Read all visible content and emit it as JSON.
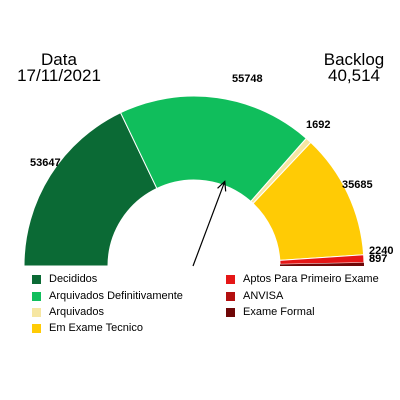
{
  "header": {
    "left_title": "Data",
    "left_value": "17/11/2021",
    "right_title": "Backlog",
    "right_value": "40,514"
  },
  "chart_data": {
    "type": "pie",
    "variant": "half-donut gauge",
    "series": [
      {
        "name": "Decididos",
        "value": 53647,
        "label": "53647",
        "color": "#0b6a35"
      },
      {
        "name": "Arquivados Definitivamente",
        "value": 55748,
        "label": "55748",
        "color": "#10be5c"
      },
      {
        "name": "Arquivados",
        "value": 1692,
        "label": "1692",
        "color": "#f6e6a2"
      },
      {
        "name": "Em Exame Tecnico",
        "value": 35685,
        "label": "35685",
        "color": "#ffcb05"
      },
      {
        "name": "Aptos Para Primeiro Exame",
        "value": 2240,
        "label": "2240",
        "color": "#e51616"
      },
      {
        "name": "ANVISA",
        "value": 8,
        "label": "8",
        "color": "#b30f0f"
      },
      {
        "name": "Exame Formal",
        "value": 897,
        "label": "897",
        "color": "#6e0606"
      }
    ],
    "pointer": {
      "value": 110,
      "unit": "degrees from left end"
    },
    "legend_position": "bottom"
  }
}
